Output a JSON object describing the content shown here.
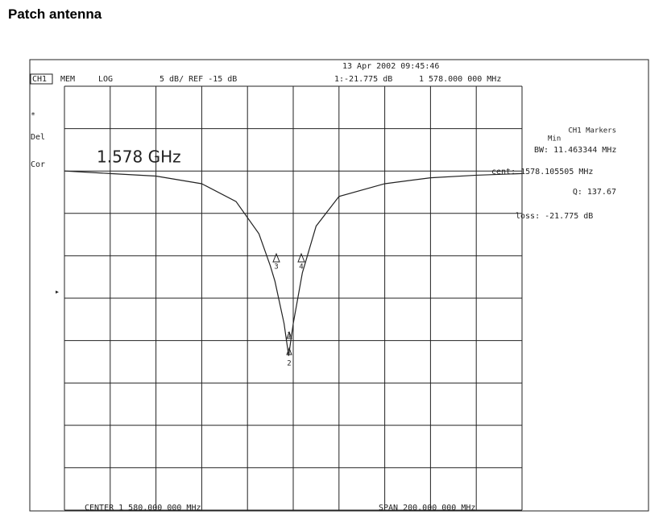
{
  "header": {
    "title": "Patch antenna"
  },
  "display": {
    "channel": "CH1",
    "mem": "MEM",
    "format": "LOG",
    "scale": "5 dB/ REF -15 dB",
    "timestamp": "13 Apr 2002  09:45:46",
    "marker_readout": "1:-21.775 dB",
    "marker_freq": "1 578.000 000 MHz",
    "left_labels": [
      "*",
      "Del",
      "Cor"
    ],
    "annotation": "1.578 GHz",
    "markers_panel": [
      "CH1 Markers",
      "Min",
      "BW: 11.463344 MHz",
      "cent: 1578.105505 MHz",
      "Q: 137.67",
      "loss: -21.775 dB"
    ],
    "marker_labels": [
      "1",
      "2",
      "3",
      "4"
    ],
    "center": "CENTER 1 580.000 000 MHz",
    "span": "SPAN 200.000 000 MHz"
  },
  "chart_data": {
    "type": "line",
    "x": [
      1480,
      1500,
      1520,
      1540,
      1555,
      1565,
      1570,
      1572,
      1576,
      1578,
      1580,
      1584,
      1590,
      1600,
      1620,
      1640,
      1660,
      1680
    ],
    "series": [
      {
        "color": "#222222",
        "values": [
          0,
          -0.3,
          -0.6,
          -1.5,
          -3.6,
          -7.4,
          -11.2,
          -13,
          -18,
          -21.8,
          -18,
          -12,
          -6.5,
          -3,
          -1.5,
          -0.8,
          -0.5,
          -0.3
        ]
      }
    ],
    "xlim": [
      1480,
      1680
    ],
    "ylim": [
      -40,
      10
    ]
  }
}
